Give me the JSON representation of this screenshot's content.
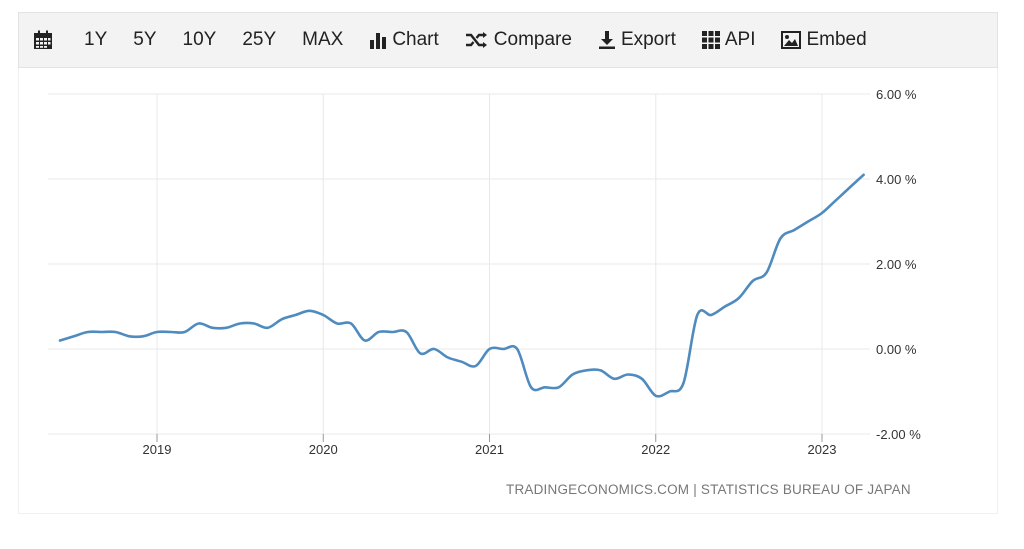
{
  "toolbar": {
    "calendar_icon": "calendar-icon",
    "ranges": [
      "1Y",
      "5Y",
      "10Y",
      "25Y",
      "MAX"
    ],
    "chart_label": "Chart",
    "compare_label": "Compare",
    "export_label": "Export",
    "api_label": "API",
    "embed_label": "Embed"
  },
  "source_text": "TRADINGECONOMICS.COM | STATISTICS BUREAU OF JAPAN",
  "colors": {
    "line": "#4f8bbf",
    "grid": "#e8e8e8",
    "toolbar_bg": "#f3f3f3"
  },
  "chart_data": {
    "type": "line",
    "title": "",
    "xlabel": "",
    "ylabel": "",
    "x_ticks": [
      "2019",
      "2020",
      "2021",
      "2022",
      "2023"
    ],
    "y_ticks": [
      "6.00 %",
      "4.00 %",
      "2.00 %",
      "0.00 %",
      "-2.00 %"
    ],
    "ylim": [
      -2,
      6
    ],
    "grid": true,
    "series": [
      {
        "values": [
          {
            "x": "2018-06",
            "y": 0.2
          },
          {
            "x": "2018-07",
            "y": 0.3
          },
          {
            "x": "2018-08",
            "y": 0.4
          },
          {
            "x": "2018-09",
            "y": 0.4
          },
          {
            "x": "2018-10",
            "y": 0.4
          },
          {
            "x": "2018-11",
            "y": 0.3
          },
          {
            "x": "2018-12",
            "y": 0.3
          },
          {
            "x": "2019-01",
            "y": 0.4
          },
          {
            "x": "2019-02",
            "y": 0.4
          },
          {
            "x": "2019-03",
            "y": 0.4
          },
          {
            "x": "2019-04",
            "y": 0.6
          },
          {
            "x": "2019-05",
            "y": 0.5
          },
          {
            "x": "2019-06",
            "y": 0.5
          },
          {
            "x": "2019-07",
            "y": 0.6
          },
          {
            "x": "2019-08",
            "y": 0.6
          },
          {
            "x": "2019-09",
            "y": 0.5
          },
          {
            "x": "2019-10",
            "y": 0.7
          },
          {
            "x": "2019-11",
            "y": 0.8
          },
          {
            "x": "2019-12",
            "y": 0.9
          },
          {
            "x": "2020-01",
            "y": 0.8
          },
          {
            "x": "2020-02",
            "y": 0.6
          },
          {
            "x": "2020-03",
            "y": 0.6
          },
          {
            "x": "2020-04",
            "y": 0.2
          },
          {
            "x": "2020-05",
            "y": 0.4
          },
          {
            "x": "2020-06",
            "y": 0.4
          },
          {
            "x": "2020-07",
            "y": 0.4
          },
          {
            "x": "2020-08",
            "y": -0.1
          },
          {
            "x": "2020-09",
            "y": 0.0
          },
          {
            "x": "2020-10",
            "y": -0.2
          },
          {
            "x": "2020-11",
            "y": -0.3
          },
          {
            "x": "2020-12",
            "y": -0.4
          },
          {
            "x": "2021-01",
            "y": 0.0
          },
          {
            "x": "2021-02",
            "y": 0.0
          },
          {
            "x": "2021-03",
            "y": 0.0
          },
          {
            "x": "2021-04",
            "y": -0.9
          },
          {
            "x": "2021-05",
            "y": -0.9
          },
          {
            "x": "2021-06",
            "y": -0.9
          },
          {
            "x": "2021-07",
            "y": -0.6
          },
          {
            "x": "2021-08",
            "y": -0.5
          },
          {
            "x": "2021-09",
            "y": -0.5
          },
          {
            "x": "2021-10",
            "y": -0.7
          },
          {
            "x": "2021-11",
            "y": -0.6
          },
          {
            "x": "2021-12",
            "y": -0.7
          },
          {
            "x": "2022-01",
            "y": -1.1
          },
          {
            "x": "2022-02",
            "y": -1.0
          },
          {
            "x": "2022-03",
            "y": -0.8
          },
          {
            "x": "2022-04",
            "y": 0.8
          },
          {
            "x": "2022-05",
            "y": 0.8
          },
          {
            "x": "2022-06",
            "y": 1.0
          },
          {
            "x": "2022-07",
            "y": 1.2
          },
          {
            "x": "2022-08",
            "y": 1.6
          },
          {
            "x": "2022-09",
            "y": 1.8
          },
          {
            "x": "2022-10",
            "y": 2.6
          },
          {
            "x": "2022-11",
            "y": 2.8
          },
          {
            "x": "2022-12",
            "y": 3.0
          },
          {
            "x": "2023-01",
            "y": 3.2
          },
          {
            "x": "2023-02",
            "y": 3.5
          },
          {
            "x": "2023-03",
            "y": 3.8
          },
          {
            "x": "2023-04",
            "y": 4.1
          }
        ]
      }
    ]
  }
}
